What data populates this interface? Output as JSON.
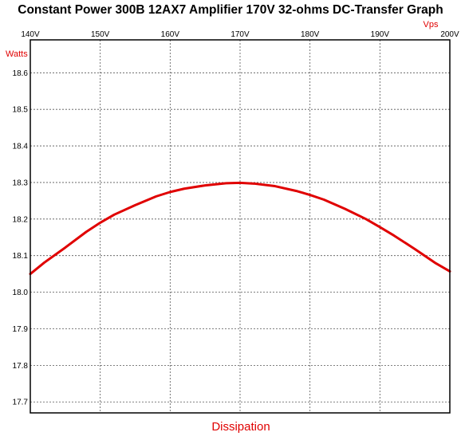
{
  "chart_data": {
    "type": "line",
    "title": "Constant Power 300B 12AX7 Amplifier 170V 32-ohms DC-Transfer Graph",
    "xlabel": "Dissipation",
    "x_unit": "Vps",
    "y_unit": "Watts",
    "x_ticks": [
      "140V",
      "150V",
      "160V",
      "170V",
      "180V",
      "190V",
      "200V"
    ],
    "y_ticks": [
      "18.6",
      "18.5",
      "18.4",
      "18.3",
      "18.2",
      "18.1",
      "18.0",
      "17.9",
      "17.8",
      "17.7"
    ],
    "xlim": [
      140,
      200
    ],
    "ylim": [
      17.67,
      18.69
    ],
    "grid": true,
    "series": [
      {
        "color": "#e00000",
        "x": [
          140,
          142,
          145,
          148,
          150,
          152,
          155,
          158,
          160,
          162,
          165,
          168,
          170,
          172,
          175,
          178,
          180,
          182,
          185,
          188,
          190,
          192,
          195,
          198,
          200
        ],
        "y": [
          18.05,
          18.081,
          18.122,
          18.165,
          18.19,
          18.212,
          18.238,
          18.262,
          18.274,
          18.283,
          18.292,
          18.298,
          18.299,
          18.297,
          18.29,
          18.277,
          18.266,
          18.253,
          18.228,
          18.2,
          18.178,
          18.155,
          18.118,
          18.079,
          18.057
        ]
      }
    ]
  }
}
